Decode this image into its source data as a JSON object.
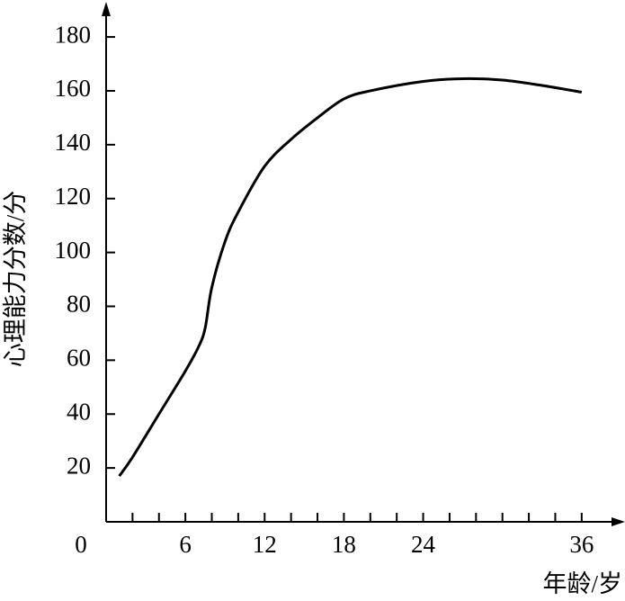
{
  "chart_data": {
    "type": "line",
    "y_label": "心理能力分数/分",
    "x_label": "年龄/岁",
    "x": [
      1,
      2,
      4,
      6,
      7,
      7.5,
      8,
      9,
      10,
      12,
      14,
      16,
      18,
      20,
      24,
      27,
      30,
      33,
      36
    ],
    "series": [
      {
        "color": "#000000",
        "values": [
          17,
          24,
          40,
          56,
          65,
          72,
          87,
          104,
          115,
          132,
          142,
          150,
          157,
          160,
          163.5,
          164.5,
          164,
          162,
          159.5
        ]
      }
    ],
    "xlim": [
      0,
      39
    ],
    "ylim": [
      0,
      192
    ],
    "xticks": [
      0,
      6,
      12,
      18,
      24,
      36
    ],
    "xminorticks": [
      2,
      4,
      6,
      8,
      10,
      12,
      14,
      16,
      18,
      20,
      22,
      24,
      26,
      28,
      30,
      32,
      34,
      36
    ],
    "yticks": [
      20,
      40,
      60,
      80,
      100,
      120,
      140,
      160,
      180
    ]
  }
}
